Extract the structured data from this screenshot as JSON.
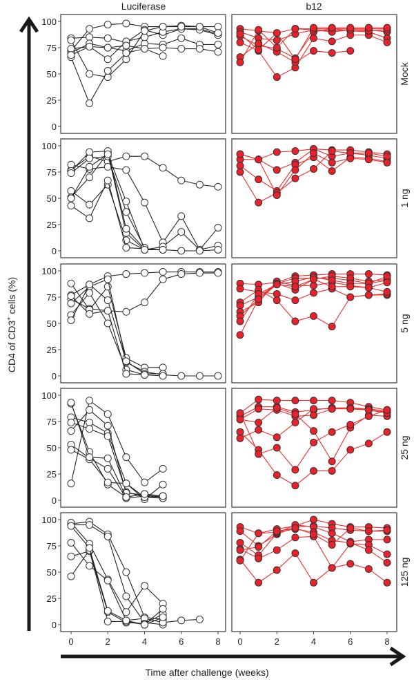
{
  "chart_data": {
    "type": "line",
    "xlabel": "Time after challenge (weeks)",
    "ylabel_parts": [
      "CD4 of CD3",
      "+",
      " cells (%)"
    ],
    "columns": [
      "Luciferase",
      "b12"
    ],
    "rows": [
      "Mock",
      "1 ng",
      "5 ng",
      "25 ng",
      "125 ng"
    ],
    "x": [
      0,
      1,
      2,
      3,
      4,
      5,
      6,
      7,
      8
    ],
    "xticks": [
      0,
      2,
      4,
      6,
      8
    ],
    "yticks": [
      0,
      25,
      50,
      75,
      100
    ],
    "xlim": [
      0,
      8
    ],
    "ylim": [
      0,
      100
    ],
    "colors": {
      "luciferase_fill": "#ffffff",
      "luciferase_line": "#222222",
      "b12_fill": "#e8212a",
      "b12_line": "#ee2a2a"
    },
    "panels": [
      {
        "row": "Mock",
        "column": "Luciferase",
        "series": [
          [
            72,
            93,
            97,
            98,
            95,
            95,
            96,
            95,
            95
          ],
          [
            84,
            85,
            84,
            80,
            92,
            87,
            93,
            93,
            88
          ],
          [
            70,
            79,
            75,
            72,
            79,
            78,
            84,
            78,
            78
          ],
          [
            74,
            76,
            64,
            81,
            85,
            90,
            93,
            92,
            87
          ],
          [
            82,
            50,
            47,
            64,
            91,
            95,
            95,
            95,
            89
          ],
          [
            66,
            22,
            53,
            70,
            74,
            67,
            null,
            null,
            null
          ],
          [
            68,
            76,
            75,
            77,
            74,
            75,
            74,
            74,
            71
          ]
        ]
      },
      {
        "row": "Mock",
        "column": "b12",
        "series": [
          [
            93,
            91,
            89,
            93,
            93,
            93,
            93,
            93,
            93
          ],
          [
            90,
            84,
            82,
            88,
            92,
            91,
            92,
            92,
            90
          ],
          [
            86,
            77,
            74,
            65,
            90,
            93,
            91,
            90,
            84
          ],
          [
            80,
            72,
            47,
            56,
            84,
            81,
            87,
            87,
            80
          ],
          [
            66,
            79,
            71,
            61,
            72,
            70,
            72,
            null,
            null
          ],
          [
            61,
            92,
            75,
            93,
            92,
            90,
            92,
            91,
            92
          ],
          [
            88,
            73,
            89,
            64,
            94,
            94,
            94,
            94,
            94
          ]
        ]
      },
      {
        "row": "1 ng",
        "column": "Luciferase",
        "series": [
          [
            77,
            90,
            85,
            90,
            90,
            79,
            67,
            63,
            61
          ],
          [
            82,
            78,
            80,
            77,
            46,
            8,
            33,
            1,
            5
          ],
          [
            57,
            44,
            63,
            10,
            1,
            4,
            18,
            1,
            22
          ],
          [
            43,
            31,
            67,
            3,
            2,
            1,
            0,
            0,
            1
          ],
          [
            51,
            70,
            93,
            17,
            1,
            1,
            null,
            null,
            null
          ],
          [
            76,
            94,
            95,
            21,
            2,
            null,
            null,
            null,
            null
          ],
          [
            74,
            88,
            90,
            37,
            3,
            null,
            null,
            null,
            null
          ],
          [
            50,
            80,
            92,
            47,
            1,
            null,
            null,
            null,
            null
          ]
        ]
      },
      {
        "row": "1 ng",
        "column": "b12",
        "series": [
          [
            92,
            87,
            94,
            95,
            97,
            96,
            96,
            94,
            92
          ],
          [
            87,
            87,
            77,
            84,
            97,
            90,
            93,
            91,
            88
          ],
          [
            81,
            68,
            57,
            82,
            89,
            76,
            89,
            88,
            85
          ],
          [
            75,
            46,
            55,
            69,
            78,
            95,
            93,
            93,
            90
          ],
          [
            92,
            87,
            53,
            77,
            93,
            84,
            88,
            87,
            84
          ]
        ]
      },
      {
        "row": "5 ng",
        "column": "Luciferase",
        "series": [
          [
            77,
            87,
            95,
            97,
            98,
            99,
            99,
            99,
            99
          ],
          [
            73,
            64,
            62,
            61,
            70,
            92,
            97,
            98,
            98
          ],
          [
            88,
            63,
            85,
            17,
            8,
            8,
            null,
            null,
            null
          ],
          [
            69,
            85,
            92,
            13,
            4,
            1,
            0,
            0,
            0
          ],
          [
            58,
            79,
            50,
            6,
            1,
            null,
            null,
            null,
            null
          ],
          [
            53,
            87,
            72,
            14,
            2,
            2,
            null,
            null,
            null
          ],
          [
            76,
            59,
            62,
            2,
            1,
            0,
            null,
            null,
            null
          ]
        ]
      },
      {
        "row": "5 ng",
        "column": "b12",
        "series": [
          [
            88,
            87,
            89,
            95,
            96,
            97,
            97,
            97,
            96
          ],
          [
            83,
            80,
            78,
            72,
            79,
            83,
            75,
            77,
            77
          ],
          [
            70,
            82,
            72,
            52,
            57,
            47,
            75,
            77,
            78
          ],
          [
            67,
            75,
            88,
            93,
            93,
            93,
            91,
            88,
            91
          ],
          [
            61,
            70,
            90,
            86,
            86,
            89,
            86,
            84,
            80
          ],
          [
            57,
            73,
            88,
            82,
            92,
            95,
            93,
            90,
            92
          ],
          [
            52,
            78,
            87,
            90,
            94,
            91,
            88,
            88,
            95
          ],
          [
            39,
            73,
            87,
            85,
            92,
            85,
            85,
            84,
            89
          ]
        ]
      },
      {
        "row": "25 ng",
        "column": "Luciferase",
        "series": [
          [
            92,
            46,
            15,
            3,
            6,
            4,
            null,
            null,
            null
          ],
          [
            16,
            95,
            82,
            41,
            17,
            30,
            null,
            null,
            null
          ],
          [
            79,
            74,
            64,
            16,
            1,
            15,
            null,
            null,
            null
          ],
          [
            74,
            68,
            61,
            8,
            3,
            2,
            null,
            null,
            null
          ],
          [
            66,
            86,
            71,
            7,
            5,
            3,
            null,
            null,
            null
          ],
          [
            53,
            40,
            30,
            2,
            4,
            2,
            null,
            null,
            null
          ],
          [
            48,
            39,
            17,
            16,
            3,
            4,
            null,
            null,
            null
          ],
          [
            93,
            41,
            40,
            3,
            6,
            4,
            null,
            null,
            null
          ]
        ]
      },
      {
        "row": "25 ng",
        "column": "b12",
        "series": [
          [
            83,
            96,
            95,
            95,
            95,
            95,
            93,
            89,
            86
          ],
          [
            80,
            89,
            89,
            84,
            86,
            88,
            88,
            87,
            85
          ],
          [
            77,
            87,
            86,
            80,
            81,
            87,
            88,
            86,
            84
          ],
          [
            77,
            74,
            88,
            82,
            66,
            37,
            69,
            81,
            80
          ],
          [
            65,
            48,
            24,
            14,
            28,
            28,
            48,
            54,
            65
          ],
          [
            59,
            67,
            60,
            74,
            87,
            87,
            87,
            86,
            83
          ],
          [
            83,
            44,
            50,
            29,
            55,
            65,
            72,
            80,
            86
          ]
        ]
      },
      {
        "row": "125 ng",
        "column": "Luciferase",
        "series": [
          [
            96,
            98,
            86,
            50,
            7,
            5,
            null,
            null,
            null
          ],
          [
            95,
            95,
            84,
            27,
            2,
            0,
            null,
            null,
            null
          ],
          [
            97,
            77,
            43,
            12,
            37,
            20,
            null,
            null,
            null
          ],
          [
            78,
            56,
            42,
            4,
            6,
            2,
            4,
            5,
            null
          ],
          [
            65,
            70,
            12,
            2,
            1,
            10,
            null,
            null,
            null
          ],
          [
            46,
            71,
            3,
            3,
            0,
            15,
            null,
            null,
            null
          ],
          [
            94,
            73,
            13,
            4,
            0,
            7,
            null,
            null,
            null
          ]
        ]
      },
      {
        "row": "125 ng",
        "column": "b12",
        "series": [
          [
            93,
            87,
            91,
            94,
            100,
            96,
            93,
            93,
            92
          ],
          [
            89,
            75,
            86,
            93,
            94,
            92,
            90,
            89,
            89
          ],
          [
            78,
            66,
            87,
            95,
            93,
            87,
            79,
            81,
            81
          ],
          [
            72,
            63,
            71,
            83,
            84,
            54,
            77,
            76,
            67
          ],
          [
            62,
            40,
            52,
            68,
            40,
            54,
            58,
            53,
            40
          ],
          [
            61,
            87,
            88,
            91,
            88,
            80,
            78,
            71,
            59
          ],
          [
            71,
            74,
            89,
            92,
            86,
            76,
            92,
            89,
            90
          ]
        ]
      }
    ]
  }
}
